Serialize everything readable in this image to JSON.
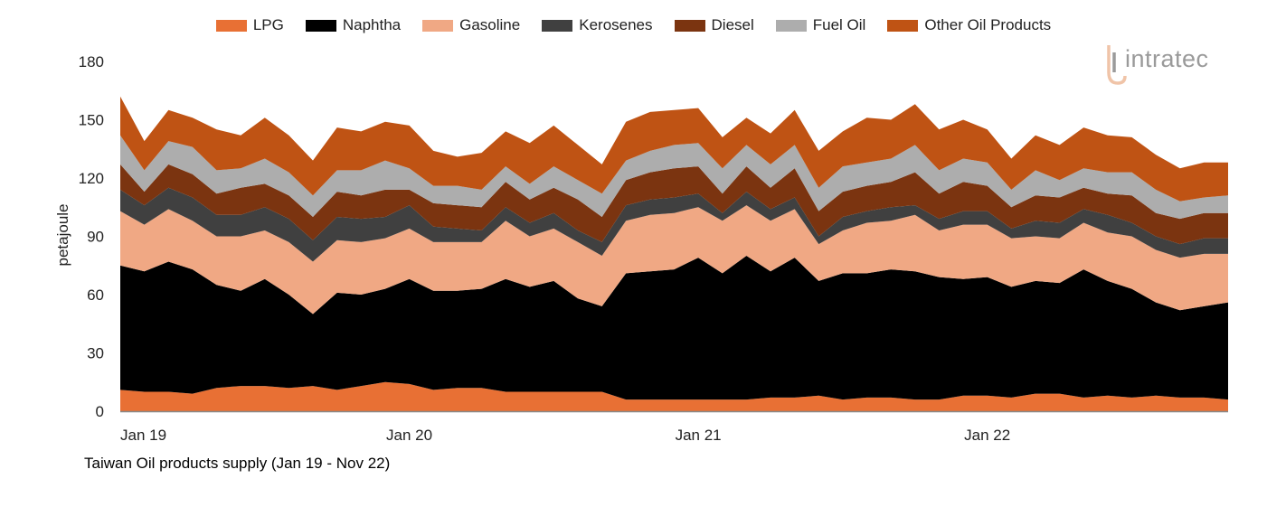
{
  "chart_data": {
    "type": "area",
    "stacked": true,
    "title": "Taiwan Oil products supply (Jan 19 - Nov 22)",
    "ylabel": "petajoule",
    "xlabel": "",
    "ylim": [
      0,
      180
    ],
    "yticks": [
      0,
      30,
      60,
      90,
      120,
      150,
      180
    ],
    "xtick_labels": [
      {
        "label": "Jan 19",
        "index": 0
      },
      {
        "label": "Jan 20",
        "index": 12
      },
      {
        "label": "Jan 21",
        "index": 24
      },
      {
        "label": "Jan 22",
        "index": 36
      }
    ],
    "legend_position": "top",
    "grid": false,
    "categories": [
      "Jan 19",
      "Feb 19",
      "Mar 19",
      "Apr 19",
      "May 19",
      "Jun 19",
      "Jul 19",
      "Aug 19",
      "Sep 19",
      "Oct 19",
      "Nov 19",
      "Dec 19",
      "Jan 20",
      "Feb 20",
      "Mar 20",
      "Apr 20",
      "May 20",
      "Jun 20",
      "Jul 20",
      "Aug 20",
      "Sep 20",
      "Oct 20",
      "Nov 20",
      "Dec 20",
      "Jan 21",
      "Feb 21",
      "Mar 21",
      "Apr 21",
      "May 21",
      "Jun 21",
      "Jul 21",
      "Aug 21",
      "Sep 21",
      "Oct 21",
      "Nov 21",
      "Dec 21",
      "Jan 22",
      "Feb 22",
      "Mar 22",
      "Apr 22",
      "May 22",
      "Jun 22",
      "Jul 22",
      "Aug 22",
      "Sep 22",
      "Oct 22",
      "Nov 22"
    ],
    "series": [
      {
        "name": "LPG",
        "color": "#e87034",
        "values": [
          11,
          10,
          10,
          9,
          12,
          13,
          13,
          12,
          13,
          11,
          13,
          15,
          14,
          11,
          12,
          12,
          10,
          10,
          10,
          10,
          10,
          6,
          6,
          6,
          6,
          6,
          6,
          7,
          7,
          8,
          6,
          7,
          7,
          6,
          6,
          8,
          8,
          7,
          9,
          9,
          7,
          8,
          7,
          8,
          7,
          7,
          6
        ]
      },
      {
        "name": "Naphtha",
        "color": "#000000",
        "values": [
          64,
          62,
          67,
          64,
          53,
          49,
          55,
          48,
          37,
          50,
          47,
          48,
          54,
          51,
          50,
          51,
          58,
          54,
          57,
          48,
          44,
          65,
          66,
          67,
          73,
          65,
          74,
          65,
          72,
          59,
          65,
          64,
          66,
          66,
          63,
          60,
          61,
          57,
          58,
          57,
          66,
          59,
          56,
          48,
          45,
          47,
          50
        ]
      },
      {
        "name": "Gasoline",
        "color": "#f0a884",
        "values": [
          28,
          24,
          27,
          25,
          25,
          28,
          25,
          27,
          27,
          27,
          27,
          26,
          26,
          25,
          25,
          24,
          30,
          26,
          27,
          29,
          26,
          27,
          29,
          29,
          26,
          27,
          26,
          26,
          25,
          19,
          22,
          26,
          25,
          29,
          24,
          28,
          27,
          25,
          23,
          23,
          24,
          25,
          27,
          27,
          27,
          27,
          25
        ]
      },
      {
        "name": "Kerosenes",
        "color": "#404040",
        "values": [
          11,
          10,
          11,
          12,
          11,
          11,
          12,
          12,
          11,
          12,
          12,
          11,
          12,
          8,
          7,
          6,
          7,
          7,
          8,
          6,
          7,
          8,
          8,
          8,
          7,
          4,
          7,
          6,
          6,
          4,
          7,
          6,
          7,
          5,
          6,
          7,
          7,
          5,
          8,
          8,
          7,
          9,
          7,
          7,
          7,
          8,
          8
        ]
      },
      {
        "name": "Diesel",
        "color": "#7b3410",
        "values": [
          13,
          7,
          12,
          12,
          11,
          14,
          12,
          12,
          12,
          13,
          12,
          14,
          8,
          12,
          12,
          12,
          13,
          12,
          13,
          16,
          13,
          13,
          14,
          15,
          14,
          10,
          13,
          11,
          15,
          13,
          13,
          13,
          13,
          17,
          13,
          15,
          13,
          11,
          13,
          13,
          11,
          11,
          14,
          12,
          13,
          13,
          13
        ]
      },
      {
        "name": "Fuel Oil",
        "color": "#adadad",
        "values": [
          15,
          11,
          12,
          14,
          12,
          10,
          13,
          12,
          11,
          11,
          13,
          15,
          11,
          9,
          10,
          9,
          8,
          8,
          11,
          10,
          12,
          10,
          11,
          12,
          12,
          13,
          11,
          12,
          12,
          12,
          13,
          12,
          12,
          14,
          12,
          12,
          12,
          9,
          13,
          9,
          10,
          11,
          12,
          12,
          9,
          8,
          9
        ]
      },
      {
        "name": "Other Oil Products",
        "color": "#bf5314",
        "values": [
          20,
          15,
          16,
          15,
          21,
          17,
          21,
          19,
          18,
          22,
          20,
          20,
          22,
          18,
          15,
          19,
          18,
          21,
          21,
          18,
          15,
          20,
          20,
          18,
          18,
          16,
          14,
          16,
          18,
          19,
          18,
          23,
          20,
          21,
          21,
          20,
          17,
          16,
          18,
          18,
          21,
          19,
          18,
          18,
          17,
          18,
          17
        ]
      }
    ]
  },
  "logo": {
    "text": "intratec"
  }
}
